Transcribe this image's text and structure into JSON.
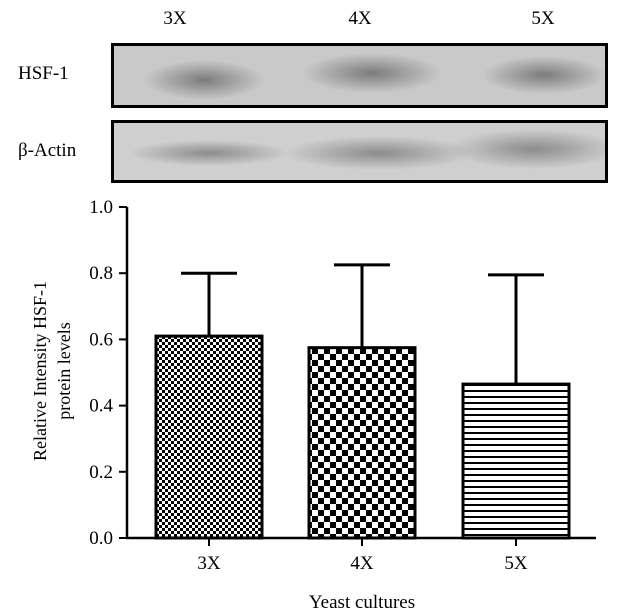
{
  "blot": {
    "lanes": [
      "3X",
      "4X",
      "5X"
    ],
    "rows": [
      {
        "label": "HSF-1",
        "intensity": [
          0.55,
          0.6,
          0.6
        ]
      },
      {
        "label": "β-Actin",
        "intensity": [
          0.5,
          0.7,
          0.75
        ]
      }
    ]
  },
  "chart_data": {
    "type": "bar",
    "categories": [
      "3X",
      "4X",
      "5X"
    ],
    "values": [
      0.61,
      0.575,
      0.465
    ],
    "errors": [
      0.19,
      0.25,
      0.33
    ],
    "patterns": [
      "fine-checker",
      "coarse-checker",
      "horizontal-lines"
    ],
    "xlabel": "Yeast cultures",
    "ylabel_lines": [
      "Relative Intensity HSF-1",
      "protein levels"
    ],
    "ylim": [
      0,
      1.0
    ],
    "yticks": [
      "0.0",
      "0.2",
      "0.4",
      "0.6",
      "0.8",
      "1.0"
    ],
    "grid": false
  }
}
